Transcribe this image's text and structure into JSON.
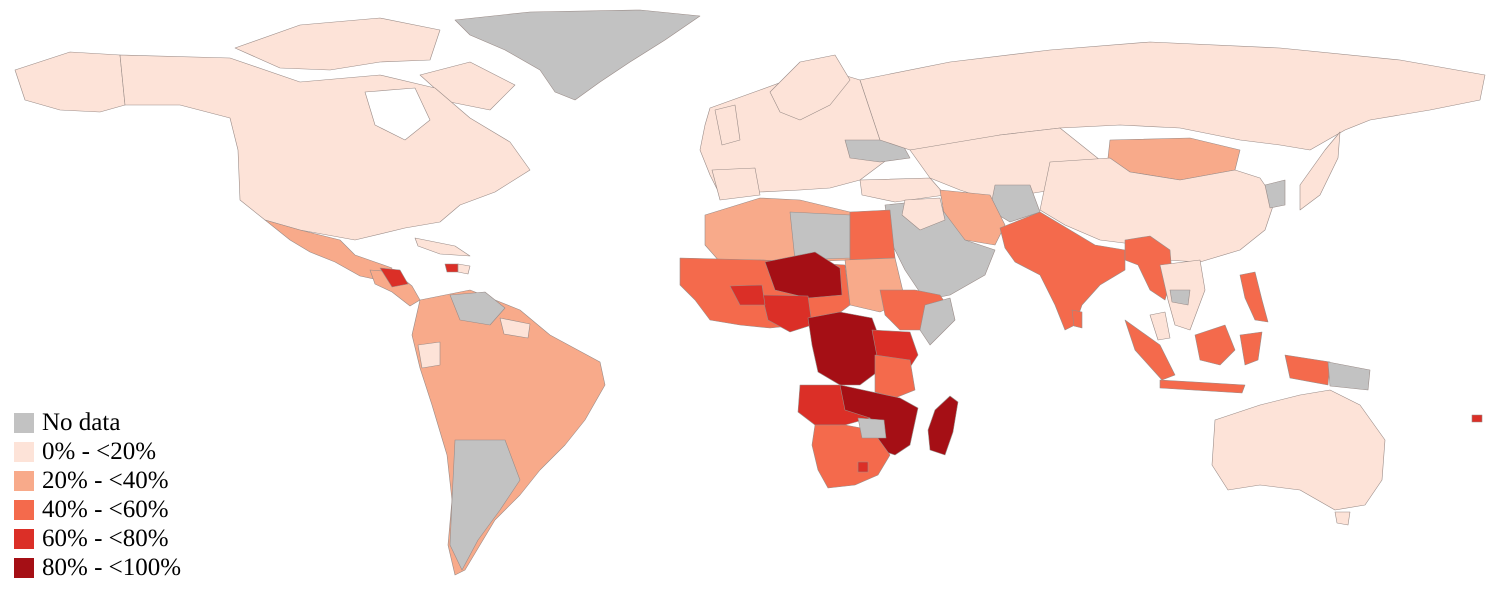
{
  "legend": {
    "items": [
      {
        "label": "No data",
        "color": "#c2c2c2"
      },
      {
        "label": "0% - <20%",
        "color": "#fde3d8"
      },
      {
        "label": "20% - <40%",
        "color": "#f8aa8a"
      },
      {
        "label": "40% - <60%",
        "color": "#f46a4c"
      },
      {
        "label": "60% - <80%",
        "color": "#db2f27"
      },
      {
        "label": "80% - <100%",
        "color": "#a50f15"
      }
    ]
  }
}
